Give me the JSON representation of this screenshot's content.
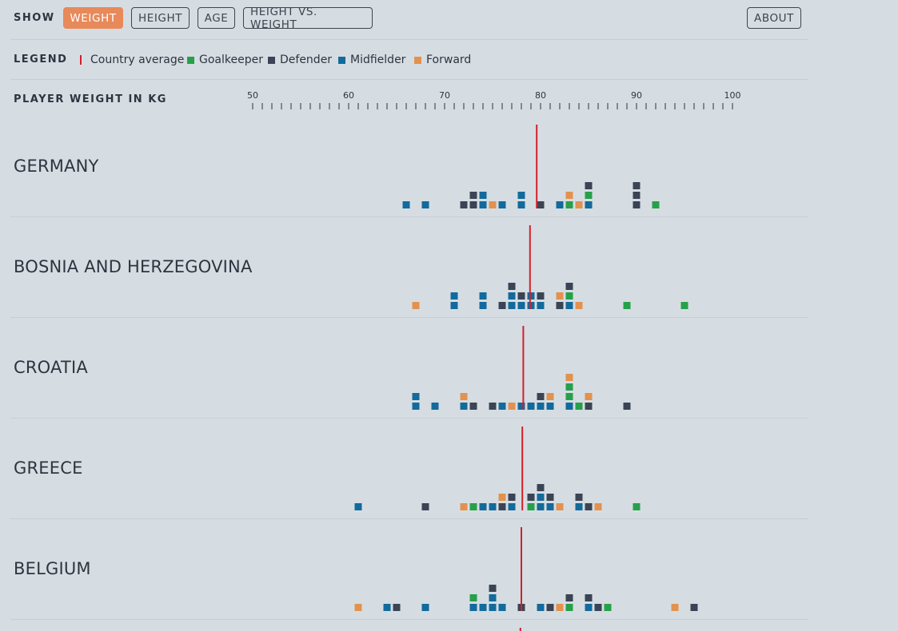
{
  "toolbar": {
    "show_label": "SHOW",
    "buttons": [
      "WEIGHT",
      "HEIGHT",
      "AGE",
      "HEIGHT VS. WEIGHT"
    ],
    "active": "WEIGHT",
    "about_label": "ABOUT"
  },
  "legend": {
    "label": "LEGEND",
    "average_label": "Country average",
    "items": [
      {
        "name": "Goalkeeper",
        "color": "#27a04a"
      },
      {
        "name": "Defender",
        "color": "#3a4454"
      },
      {
        "name": "Midfielder",
        "color": "#136a9c"
      },
      {
        "name": "Forward",
        "color": "#e3914f"
      }
    ],
    "average_color": "#d4202a"
  },
  "chart_data": {
    "type": "scatter",
    "xlabel": "PLAYER WEIGHT IN KG",
    "xlim": [
      50,
      100
    ],
    "x_ticks": [
      50,
      60,
      70,
      80,
      90,
      100
    ],
    "countries": [
      {
        "name": "GERMANY",
        "average": 79.6,
        "players": [
          [
            66,
            "M"
          ],
          [
            68,
            "M"
          ],
          [
            72,
            "D"
          ],
          [
            73,
            "D"
          ],
          [
            73,
            "D"
          ],
          [
            74,
            "M"
          ],
          [
            74,
            "M"
          ],
          [
            75,
            "F"
          ],
          [
            76,
            "M"
          ],
          [
            78,
            "M"
          ],
          [
            78,
            "M"
          ],
          [
            80,
            "D"
          ],
          [
            82,
            "M"
          ],
          [
            83,
            "G"
          ],
          [
            83,
            "F"
          ],
          [
            84,
            "F"
          ],
          [
            85,
            "M"
          ],
          [
            85,
            "G"
          ],
          [
            85,
            "D"
          ],
          [
            90,
            "D"
          ],
          [
            90,
            "D"
          ],
          [
            90,
            "D"
          ],
          [
            92,
            "G"
          ]
        ]
      },
      {
        "name": "BOSNIA AND HERZEGOVINA",
        "average": 78.9,
        "players": [
          [
            67,
            "F"
          ],
          [
            71,
            "M"
          ],
          [
            71,
            "M"
          ],
          [
            74,
            "M"
          ],
          [
            74,
            "M"
          ],
          [
            76,
            "D"
          ],
          [
            77,
            "M"
          ],
          [
            77,
            "M"
          ],
          [
            77,
            "D"
          ],
          [
            78,
            "M"
          ],
          [
            78,
            "D"
          ],
          [
            79,
            "M"
          ],
          [
            79,
            "M"
          ],
          [
            80,
            "M"
          ],
          [
            80,
            "D"
          ],
          [
            82,
            "D"
          ],
          [
            82,
            "F"
          ],
          [
            83,
            "M"
          ],
          [
            83,
            "G"
          ],
          [
            83,
            "D"
          ],
          [
            84,
            "F"
          ],
          [
            89,
            "G"
          ],
          [
            95,
            "G"
          ]
        ]
      },
      {
        "name": "CROATIA",
        "average": 78.2,
        "players": [
          [
            67,
            "M"
          ],
          [
            67,
            "M"
          ],
          [
            69,
            "M"
          ],
          [
            72,
            "M"
          ],
          [
            72,
            "F"
          ],
          [
            73,
            "D"
          ],
          [
            75,
            "D"
          ],
          [
            76,
            "M"
          ],
          [
            77,
            "F"
          ],
          [
            78,
            "M"
          ],
          [
            79,
            "M"
          ],
          [
            80,
            "M"
          ],
          [
            80,
            "D"
          ],
          [
            81,
            "M"
          ],
          [
            81,
            "F"
          ],
          [
            83,
            "M"
          ],
          [
            83,
            "G"
          ],
          [
            83,
            "G"
          ],
          [
            83,
            "F"
          ],
          [
            84,
            "G"
          ],
          [
            85,
            "D"
          ],
          [
            85,
            "F"
          ],
          [
            89,
            "D"
          ]
        ]
      },
      {
        "name": "GREECE",
        "average": 78.1,
        "players": [
          [
            61,
            "M"
          ],
          [
            68,
            "D"
          ],
          [
            72,
            "F"
          ],
          [
            73,
            "G"
          ],
          [
            74,
            "M"
          ],
          [
            75,
            "M"
          ],
          [
            76,
            "D"
          ],
          [
            76,
            "F"
          ],
          [
            77,
            "M"
          ],
          [
            77,
            "D"
          ],
          [
            79,
            "G"
          ],
          [
            79,
            "D"
          ],
          [
            80,
            "M"
          ],
          [
            80,
            "M"
          ],
          [
            80,
            "D"
          ],
          [
            81,
            "M"
          ],
          [
            81,
            "D"
          ],
          [
            82,
            "F"
          ],
          [
            84,
            "M"
          ],
          [
            84,
            "D"
          ],
          [
            85,
            "D"
          ],
          [
            86,
            "F"
          ],
          [
            90,
            "G"
          ]
        ]
      },
      {
        "name": "BELGIUM",
        "average": 78.0,
        "players": [
          [
            61,
            "F"
          ],
          [
            64,
            "M"
          ],
          [
            65,
            "D"
          ],
          [
            68,
            "M"
          ],
          [
            73,
            "M"
          ],
          [
            73,
            "G"
          ],
          [
            74,
            "M"
          ],
          [
            75,
            "M"
          ],
          [
            75,
            "M"
          ],
          [
            75,
            "D"
          ],
          [
            76,
            "M"
          ],
          [
            78,
            "D"
          ],
          [
            80,
            "M"
          ],
          [
            81,
            "D"
          ],
          [
            82,
            "F"
          ],
          [
            83,
            "G"
          ],
          [
            83,
            "D"
          ],
          [
            85,
            "M"
          ],
          [
            85,
            "D"
          ],
          [
            86,
            "D"
          ],
          [
            87,
            "G"
          ],
          [
            94,
            "F"
          ],
          [
            96,
            "D"
          ]
        ]
      }
    ]
  }
}
